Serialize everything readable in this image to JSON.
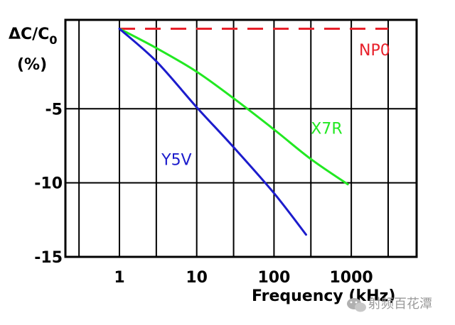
{
  "chart_data": {
    "type": "line",
    "title": "",
    "ylabel_line1": "ΔC/C",
    "ylabel_sub": "0",
    "ylabel_line2": "(%)",
    "xlabel": "Frequency (kHz)",
    "x_scale": "log",
    "xlim": [
      0.2,
      7000
    ],
    "ylim": [
      -15,
      1
    ],
    "x_ticks": [
      {
        "value": 1,
        "label": "1"
      },
      {
        "value": 10,
        "label": "10"
      },
      {
        "value": 100,
        "label": "100"
      },
      {
        "value": 1000,
        "label": "1000"
      }
    ],
    "y_ticks": [
      {
        "value": -5,
        "label": "-5"
      },
      {
        "value": -10,
        "label": "-10"
      },
      {
        "value": -15,
        "label": "-15"
      }
    ],
    "grid": true,
    "series": [
      {
        "name": "NP0",
        "color": "#e8202a",
        "dashed": true,
        "x": [
          1,
          3000
        ],
        "y": [
          0.4,
          0.4
        ]
      },
      {
        "name": "X7R",
        "color": "#22e822",
        "dashed": false,
        "x": [
          1,
          3,
          10,
          30,
          100,
          300,
          900
        ],
        "y": [
          0.4,
          -0.9,
          -2.5,
          -4.3,
          -6.4,
          -8.4,
          -10.1
        ]
      },
      {
        "name": "Y5V",
        "color": "#1c1ccc",
        "dashed": false,
        "x": [
          1,
          3,
          10,
          30,
          100,
          260
        ],
        "y": [
          0.4,
          -1.8,
          -4.9,
          -7.6,
          -10.7,
          -13.5
        ]
      }
    ]
  },
  "watermark": "射频百花潭",
  "watermark_icon": "wechat-icon"
}
